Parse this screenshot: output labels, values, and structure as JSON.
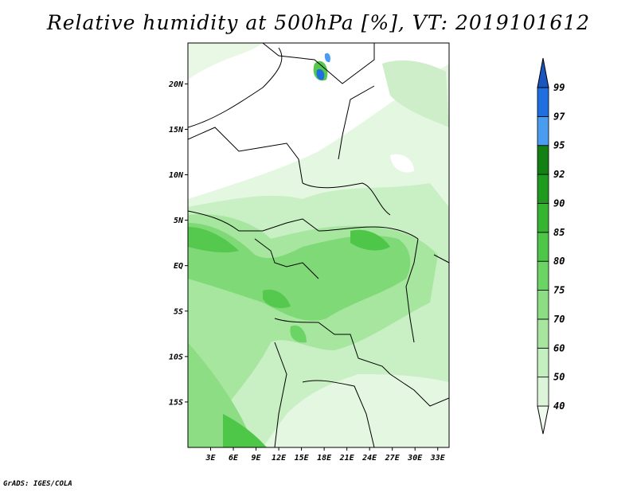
{
  "title": "Relative humidity at 500hPa [%], VT: 2019101612",
  "credit": "GrADS: IGES/COLA",
  "map": {
    "lon_range": [
      0,
      34.5
    ],
    "lat_range": [
      -20,
      24.5
    ],
    "lat_ticks": [
      {
        "lat": 20,
        "label": "20N"
      },
      {
        "lat": 15,
        "label": "15N"
      },
      {
        "lat": 10,
        "label": "10N"
      },
      {
        "lat": 5,
        "label": "5N"
      },
      {
        "lat": 0,
        "label": "EQ"
      },
      {
        "lat": -5,
        "label": "5S"
      },
      {
        "lat": -10,
        "label": "10S"
      },
      {
        "lat": -15,
        "label": "15S"
      }
    ],
    "lon_ticks": [
      {
        "lon": 3,
        "label": "3E"
      },
      {
        "lon": 6,
        "label": "6E"
      },
      {
        "lon": 9,
        "label": "9E"
      },
      {
        "lon": 12,
        "label": "12E"
      },
      {
        "lon": 15,
        "label": "15E"
      },
      {
        "lon": 18,
        "label": "18E"
      },
      {
        "lon": 21,
        "label": "21E"
      },
      {
        "lon": 24,
        "label": "24E"
      },
      {
        "lon": 27,
        "label": "27E"
      },
      {
        "lon": 30,
        "label": "30E"
      },
      {
        "lon": 33,
        "label": "33E"
      }
    ]
  },
  "colorbar": {
    "levels": [
      "40",
      "50",
      "60",
      "70",
      "75",
      "80",
      "85",
      "90",
      "92",
      "95",
      "97",
      "99"
    ],
    "colors": [
      "#f0fbef",
      "#dcf5d8",
      "#c4efbf",
      "#a8e6a0",
      "#8ddd84",
      "#6cd464",
      "#4ec748",
      "#35b530",
      "#1e9a1e",
      "#128012",
      "#4a9cf0",
      "#1f6fe0",
      "#1a55c0"
    ]
  }
}
